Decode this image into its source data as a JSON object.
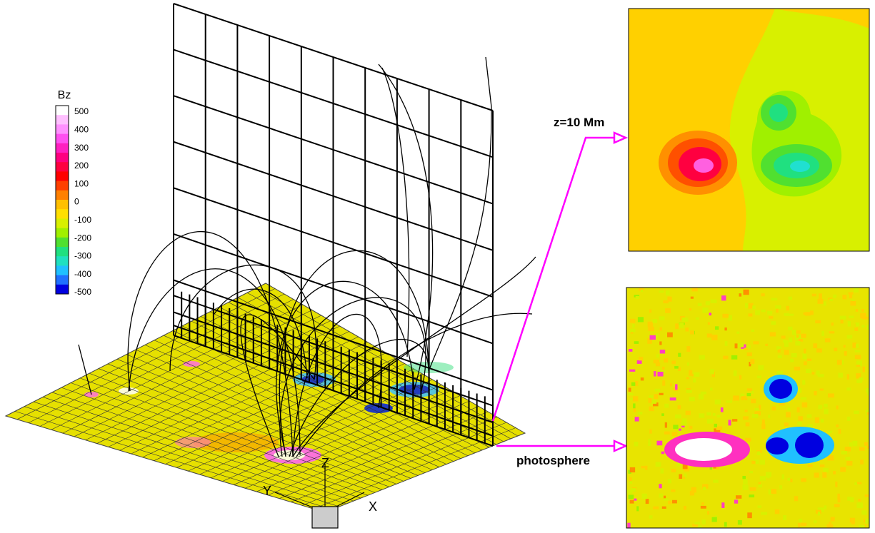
{
  "colorbar": {
    "title": "Bz",
    "ticks": [
      500,
      400,
      300,
      200,
      100,
      0,
      -100,
      -200,
      -300,
      -400,
      -500
    ],
    "colors": [
      "#ffffff",
      "#ffc0ff",
      "#ff90ff",
      "#ff50f0",
      "#ff20c0",
      "#ff0080",
      "#ff0040",
      "#ff0000",
      "#ff4000",
      "#ff8000",
      "#ffc000",
      "#ffe000",
      "#d8f000",
      "#a0f000",
      "#50e030",
      "#20e080",
      "#20e0c0",
      "#20c0ff",
      "#2070ff",
      "#0000e0"
    ]
  },
  "annotations": {
    "upper": "z=10 Mm",
    "lower": "photosphere"
  },
  "axes": {
    "z": "Z",
    "y": "Y",
    "x": "X"
  }
}
